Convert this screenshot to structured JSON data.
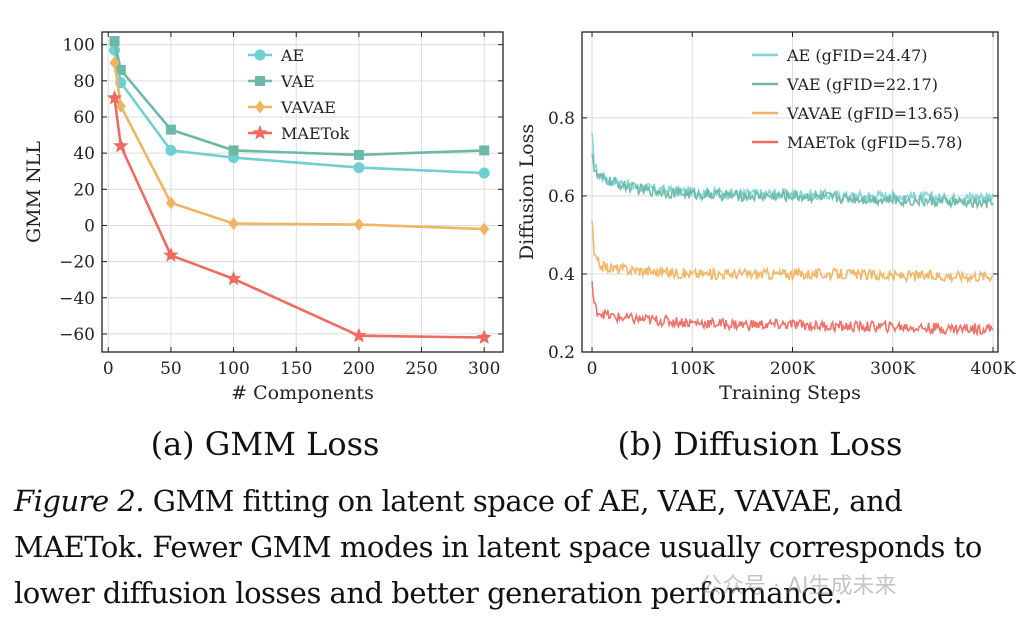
{
  "charts": [
    {
      "subcaption": "(a) GMM Loss",
      "chart_data": {
        "type": "line",
        "xlabel": "# Components",
        "ylabel": "GMM NLL",
        "xlim": [
          -5,
          315
        ],
        "ylim": [
          -70,
          107
        ],
        "xticks": [
          0,
          50,
          100,
          150,
          200,
          250,
          300
        ],
        "yticks": [
          -60,
          -40,
          -20,
          0,
          20,
          40,
          60,
          80,
          100
        ],
        "ytick_labels": [
          "−60",
          "−40",
          "−20",
          "0",
          "20",
          "40",
          "60",
          "80",
          "100"
        ],
        "grid": true,
        "legend_position": "top-center",
        "x": [
          5,
          10,
          50,
          100,
          200,
          300
        ],
        "series": [
          {
            "name": "AE",
            "marker": "circle",
            "color": "#6fcfd2",
            "values": [
              97,
              79,
              41.5,
              37.5,
              32,
              29
            ]
          },
          {
            "name": "VAE",
            "marker": "square",
            "color": "#6db9a8",
            "values": [
              102,
              86,
              53,
              41.5,
              39,
              41.5
            ]
          },
          {
            "name": "VAVAE",
            "marker": "diamond",
            "color": "#f0b562",
            "values": [
              90,
              66,
              12.5,
              1,
              0.5,
              -2
            ]
          },
          {
            "name": "MAETok",
            "marker": "star",
            "color": "#ee6b61",
            "values": [
              70.5,
              44,
              -16.5,
              -29.5,
              -61,
              -62
            ]
          }
        ]
      }
    },
    {
      "subcaption": "(b) Diffusion Loss",
      "chart_data": {
        "type": "line",
        "xlabel": "Training Steps",
        "ylabel": "Diffusion Loss",
        "xlim": [
          -10000,
          405000
        ],
        "ylim": [
          0.2,
          1.02
        ],
        "xticks": [
          0,
          100000,
          200000,
          300000,
          400000
        ],
        "xtick_labels": [
          "0",
          "100K",
          "200K",
          "300K",
          "400K"
        ],
        "yticks": [
          0.2,
          0.4,
          0.6,
          0.8
        ],
        "ytick_labels": [
          "0.2",
          "0.4",
          "0.6",
          "0.8"
        ],
        "grid": true,
        "legend_position": "top-right",
        "x": [
          0,
          2000,
          5000,
          10000,
          20000,
          40000,
          70000,
          100000,
          150000,
          200000,
          250000,
          300000,
          350000,
          400000
        ],
        "series": [
          {
            "name": "AE (gFID=24.47)",
            "color": "#7fd6d6",
            "values": [
              0.75,
              0.69,
              0.66,
              0.65,
              0.64,
              0.625,
              0.615,
              0.61,
              0.605,
              0.605,
              0.6,
              0.6,
              0.595,
              0.6
            ]
          },
          {
            "name": "VAE (gFID=22.17)",
            "color": "#6db9a8",
            "values": [
              0.72,
              0.67,
              0.65,
              0.645,
              0.635,
              0.62,
              0.61,
              0.605,
              0.6,
              0.6,
              0.595,
              0.59,
              0.585,
              0.58
            ]
          },
          {
            "name": "VAVAE (gFID=13.65)",
            "color": "#f0b562",
            "values": [
              0.54,
              0.45,
              0.43,
              0.42,
              0.415,
              0.41,
              0.405,
              0.4,
              0.4,
              0.4,
              0.4,
              0.395,
              0.395,
              0.395
            ]
          },
          {
            "name": "MAETok (gFID=5.78)",
            "color": "#ee6b61",
            "values": [
              0.38,
              0.32,
              0.305,
              0.3,
              0.29,
              0.285,
              0.28,
              0.275,
              0.27,
              0.27,
              0.265,
              0.265,
              0.26,
              0.26
            ]
          }
        ]
      }
    }
  ],
  "caption": {
    "label": "Figure 2.",
    "text": "GMM fitting on latent space of AE, VAE, VAVAE, and MAETok. Fewer GMM modes in latent space usually corresponds to lower diffusion losses and better generation performance."
  },
  "watermark": "公众号 · AI生成未来"
}
